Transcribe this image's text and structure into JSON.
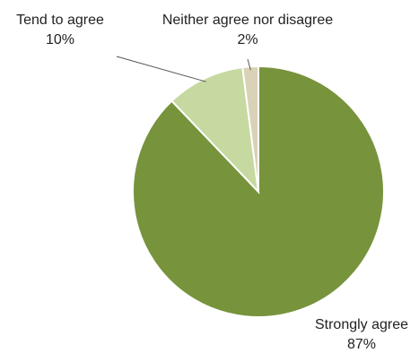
{
  "chart_data": {
    "type": "pie",
    "categories": [
      "Strongly agree",
      "Tend to agree",
      "Neither agree nor disagree"
    ],
    "values": [
      87,
      10,
      2
    ],
    "value_labels": [
      "87%",
      "10%",
      "2%"
    ],
    "colors": [
      "#77933c",
      "#c6d9a0",
      "#d9d2b7"
    ],
    "title": "",
    "start_angle_deg": 0,
    "direction": "clockwise"
  }
}
